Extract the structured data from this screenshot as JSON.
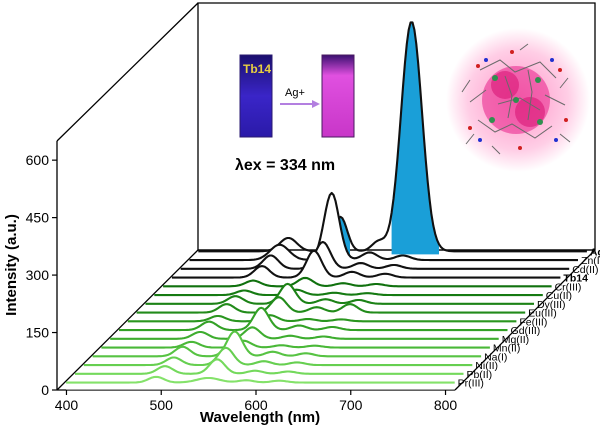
{
  "chart_data": {
    "type": "line",
    "style": "3d-waterfall",
    "xlabel": "Wavelength (nm)",
    "ylabel": "Intensity (a.u.)",
    "xlim": [
      390,
      810
    ],
    "ylim": [
      0,
      650
    ],
    "x_ticks": [
      "400",
      "500",
      "600",
      "700",
      "800"
    ],
    "y_ticks": [
      "0",
      "150",
      "300",
      "450",
      "600"
    ],
    "excitation_label": "λex = 334 nm",
    "inset": {
      "left_cuvette_label": "Tb14",
      "arrow_label": "Ag+",
      "left_color": "#2a1aa8",
      "right_color": "#d640d0"
    },
    "series": [
      {
        "name": "Pr(III)",
        "color": "#84e26a",
        "label_color": "#000000",
        "peaks": [
          [
            490,
            15,
            8
          ],
          [
            545,
            12,
            12
          ],
          [
            585,
            6,
            8
          ],
          [
            620,
            5,
            8
          ]
        ]
      },
      {
        "name": "Pb(II)",
        "color": "#74d95c",
        "label_color": "#000000",
        "peaks": [
          [
            490,
            20,
            8
          ],
          [
            545,
            38,
            8
          ],
          [
            585,
            8,
            8
          ],
          [
            620,
            6,
            8
          ]
        ]
      },
      {
        "name": "Ni(II)",
        "color": "#66cf50",
        "label_color": "#000000",
        "peaks": [
          [
            490,
            20,
            8
          ],
          [
            545,
            45,
            8
          ],
          [
            585,
            10,
            8
          ],
          [
            620,
            7,
            8
          ]
        ]
      },
      {
        "name": "Na(I)",
        "color": "#57c343",
        "label_color": "#000000",
        "peaks": [
          [
            490,
            25,
            8
          ],
          [
            545,
            65,
            8
          ],
          [
            585,
            12,
            8
          ],
          [
            620,
            8,
            8
          ]
        ]
      },
      {
        "name": "Mn(II)",
        "color": "#4ab838",
        "label_color": "#000000",
        "peaks": [
          [
            490,
            15,
            8
          ],
          [
            545,
            18,
            8
          ],
          [
            585,
            6,
            8
          ],
          [
            620,
            5,
            8
          ]
        ]
      },
      {
        "name": "Mg(II)",
        "color": "#3ead2f",
        "label_color": "#000000",
        "peaks": [
          [
            490,
            18,
            8
          ],
          [
            545,
            30,
            8
          ],
          [
            585,
            8,
            8
          ],
          [
            620,
            6,
            8
          ]
        ]
      },
      {
        "name": "Gd(III)",
        "color": "#33a126",
        "label_color": "#000000",
        "peaks": [
          [
            490,
            22,
            8
          ],
          [
            545,
            58,
            8
          ],
          [
            585,
            12,
            8
          ],
          [
            620,
            8,
            8
          ]
        ]
      },
      {
        "name": "Fe(III)",
        "color": "#2a961f",
        "label_color": "#000000",
        "peaks": [
          [
            490,
            14,
            8
          ],
          [
            545,
            16,
            8
          ],
          [
            585,
            6,
            8
          ],
          [
            620,
            5,
            8
          ]
        ]
      },
      {
        "name": "Eu(III)",
        "color": "#228b1a",
        "label_color": "#000000",
        "peaks": [
          [
            490,
            22,
            8
          ],
          [
            545,
            40,
            8
          ],
          [
            585,
            14,
            8
          ],
          [
            620,
            22,
            8
          ]
        ]
      },
      {
        "name": "Dy(III)",
        "color": "#1c8216",
        "label_color": "#000000",
        "peaks": [
          [
            490,
            20,
            8
          ],
          [
            545,
            52,
            8
          ],
          [
            585,
            12,
            8
          ],
          [
            620,
            10,
            8
          ]
        ]
      },
      {
        "name": "Cu(II)",
        "color": "#157a12",
        "label_color": "#000000",
        "peaks": [
          [
            490,
            12,
            8
          ],
          [
            545,
            14,
            8
          ],
          [
            585,
            6,
            8
          ],
          [
            620,
            5,
            8
          ]
        ]
      },
      {
        "name": "Cr(III)",
        "color": "#10710e",
        "label_color": "#000000",
        "peaks": [
          [
            490,
            15,
            8
          ],
          [
            545,
            22,
            8
          ],
          [
            585,
            8,
            8
          ],
          [
            620,
            6,
            8
          ]
        ]
      },
      {
        "name": "Tb14",
        "color": "#111111",
        "label_color": "#1a3fd0",
        "peaks": [
          [
            490,
            30,
            8
          ],
          [
            545,
            70,
            8
          ],
          [
            585,
            15,
            8
          ],
          [
            620,
            10,
            8
          ]
        ]
      },
      {
        "name": "Cd(II)",
        "color": "#111111",
        "label_color": "#000000",
        "peaks": [
          [
            490,
            35,
            8
          ],
          [
            545,
            70,
            8
          ],
          [
            585,
            15,
            8
          ],
          [
            620,
            10,
            8
          ]
        ]
      },
      {
        "name": "Zn(II)",
        "color": "#111111",
        "label_color": "#000000",
        "peaks": [
          [
            490,
            40,
            10
          ],
          [
            545,
            175,
            8
          ],
          [
            585,
            20,
            8
          ],
          [
            620,
            12,
            8
          ]
        ]
      },
      {
        "name": "Ag(I)",
        "color": "#111111",
        "label_color": "#e02020",
        "fill": "#1a9fd8",
        "peaks": [
          [
            490,
            35,
            9
          ],
          [
            545,
            90,
            7
          ],
          [
            585,
            25,
            7
          ],
          [
            620,
            600,
            11
          ]
        ]
      }
    ]
  }
}
